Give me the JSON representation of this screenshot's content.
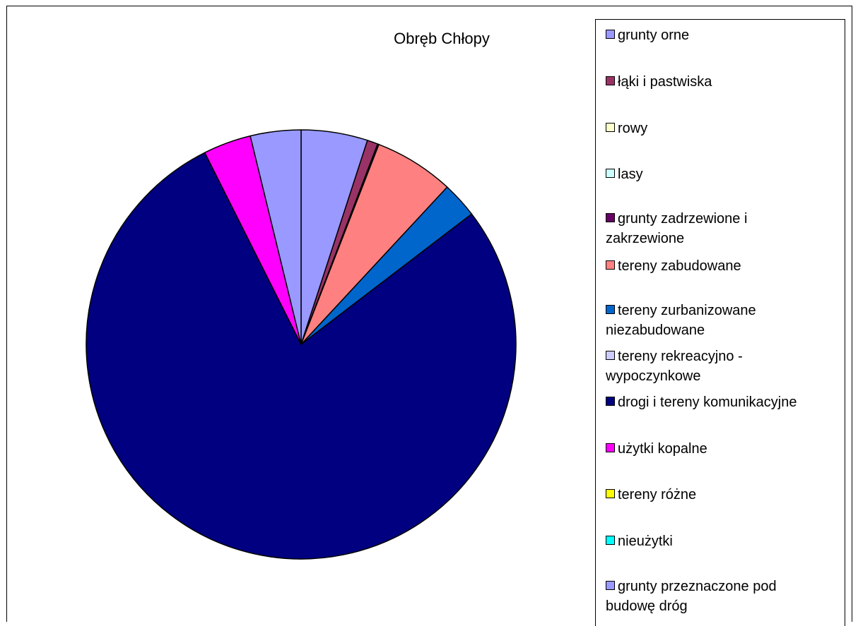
{
  "chart_data": {
    "type": "pie",
    "title": "Obręb Chłopy",
    "legend_position": "right",
    "start_angle": "12 o'clock, clockwise",
    "slices": [
      {
        "label": "grunty orne",
        "value": 5.0,
        "color": "#9999ff"
      },
      {
        "label": "łąki i pastwiska",
        "value": 0.8,
        "color": "#993366"
      },
      {
        "label": "rowy",
        "value": 0,
        "color": "#ffffcc"
      },
      {
        "label": "lasy",
        "value": 0,
        "color": "#ccffff"
      },
      {
        "label": "grunty zadrzewione i zakrzewione",
        "value": 0.1,
        "color": "#660066"
      },
      {
        "label": "tereny zabudowane",
        "value": 6.0,
        "color": "#ff8080"
      },
      {
        "label": "tereny zurbanizowane niezabudowane",
        "value": 2.7,
        "color": "#0066cc"
      },
      {
        "label": "tereny rekreacyjno - wypoczynkowe",
        "value": 0,
        "color": "#ccccff"
      },
      {
        "label": "drogi i tereny komunikacyjne",
        "value": 78.0,
        "color": "#000080"
      },
      {
        "label": "użytki kopalne",
        "value": 3.6,
        "color": "#ff00ff"
      },
      {
        "label": "tereny różne",
        "value": 0,
        "color": "#ffff00"
      },
      {
        "label": "nieużytki",
        "value": 0,
        "color": "#00ffff"
      },
      {
        "label": "grunty przeznaczone pod budowę dróg",
        "value": 3.8,
        "color": "#9999ff"
      }
    ]
  },
  "legend": {
    "items": [
      {
        "lines": [
          "grunty orne"
        ]
      },
      {
        "lines": [
          "łąki i pastwiska"
        ]
      },
      {
        "lines": [
          "rowy"
        ]
      },
      {
        "lines": [
          "lasy"
        ]
      },
      {
        "lines": [
          "grunty zadrzewione i",
          "zakrzewione"
        ]
      },
      {
        "lines": [
          "tereny zabudowane"
        ]
      },
      {
        "lines": [
          "tereny zurbanizowane",
          "niezabudowane"
        ]
      },
      {
        "lines": [
          "tereny rekreacyjno -",
          "wypoczynkowe"
        ]
      },
      {
        "lines": [
          "drogi i tereny komunikacyjne"
        ]
      },
      {
        "lines": [
          "użytki kopalne"
        ]
      },
      {
        "lines": [
          "tereny różne"
        ]
      },
      {
        "lines": [
          "nieużytki"
        ]
      },
      {
        "lines": [
          "grunty przeznaczone pod",
          "budowę dróg"
        ]
      }
    ]
  }
}
